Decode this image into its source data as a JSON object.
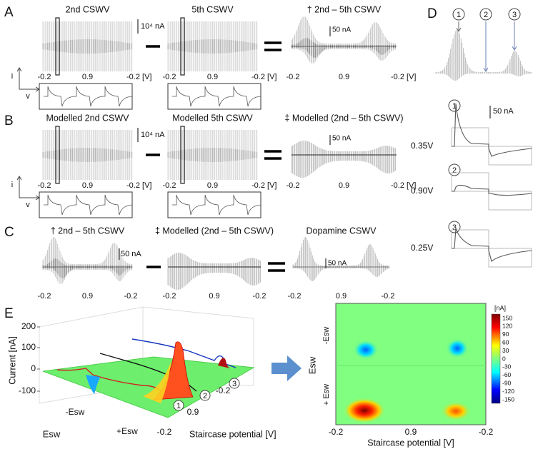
{
  "A": {
    "label": "A",
    "titles": [
      "2nd CSWV",
      "5th CSWV",
      "† 2nd – 5th CSWV"
    ],
    "scales": [
      "10⁴ nA",
      "50 nA"
    ],
    "ticks": [
      [
        "-0.2",
        "0.9",
        "-0.2 [V]"
      ],
      [
        "-0.2",
        "0.9",
        "-0.2 [V]"
      ],
      [
        "-0.2",
        "0.9",
        "-0.2 [V]"
      ]
    ],
    "i": "i",
    "v": "v"
  },
  "B": {
    "label": "B",
    "titles": [
      "Modelled 2nd CSWV",
      "Modelled 5th CSWV",
      "‡ Modelled (2nd – 5th CSWV)"
    ],
    "scales": [
      "10⁴ nA",
      "50 nA"
    ],
    "ticks": [
      [
        "-0.2",
        "0.9",
        "-0.2 [V]"
      ],
      [
        "-0.2",
        "0.9",
        "-0.2 [V]"
      ],
      [
        "-0.2",
        "0.9",
        "-0.2 [V]"
      ]
    ],
    "i": "i",
    "v": "v"
  },
  "C": {
    "label": "C",
    "titles": [
      "† 2nd – 5th CSWV",
      "‡ Modelled (2nd – 5th CSWV)",
      "Dopamine CSWV"
    ],
    "scales": [
      "50 nA",
      "50 nA"
    ],
    "ticks": [
      [
        "-0.2",
        "0.9",
        "-0.2"
      ],
      [
        "-0.2",
        "0.9",
        "-0.2"
      ],
      [
        "-0.2",
        "0.9",
        "-0.2"
      ]
    ]
  },
  "D": {
    "label": "D",
    "markers": [
      "1",
      "2",
      "3"
    ],
    "scale": "50 nA",
    "potentials": [
      "0.35V",
      "0.90V",
      "0.25V"
    ]
  },
  "E": {
    "label": "E",
    "surface": {
      "yticks": [
        "200",
        "100",
        "0",
        "-100"
      ],
      "ylabel": "Current [nA]",
      "esw": [
        "-Esw",
        "+Esw"
      ],
      "esw_label": "Esw",
      "xticks": [
        "-0.2",
        "0.9",
        "-0.2"
      ],
      "xlabel": "Staircase potential [V]",
      "markers": [
        "1",
        "2",
        "3"
      ]
    },
    "heatmap": {
      "unit": "[nA]",
      "cticks": [
        "150",
        "120",
        "90",
        "60",
        "30",
        "0",
        "-30",
        "-60",
        "-90",
        "-120",
        "-150"
      ],
      "esw": [
        "-Esw",
        "+ Esw"
      ],
      "esw_label": "Esw",
      "xticks": [
        "-0.2",
        "0.9",
        "-0.2"
      ],
      "xlabel": "Staircase potential [V]"
    }
  }
}
